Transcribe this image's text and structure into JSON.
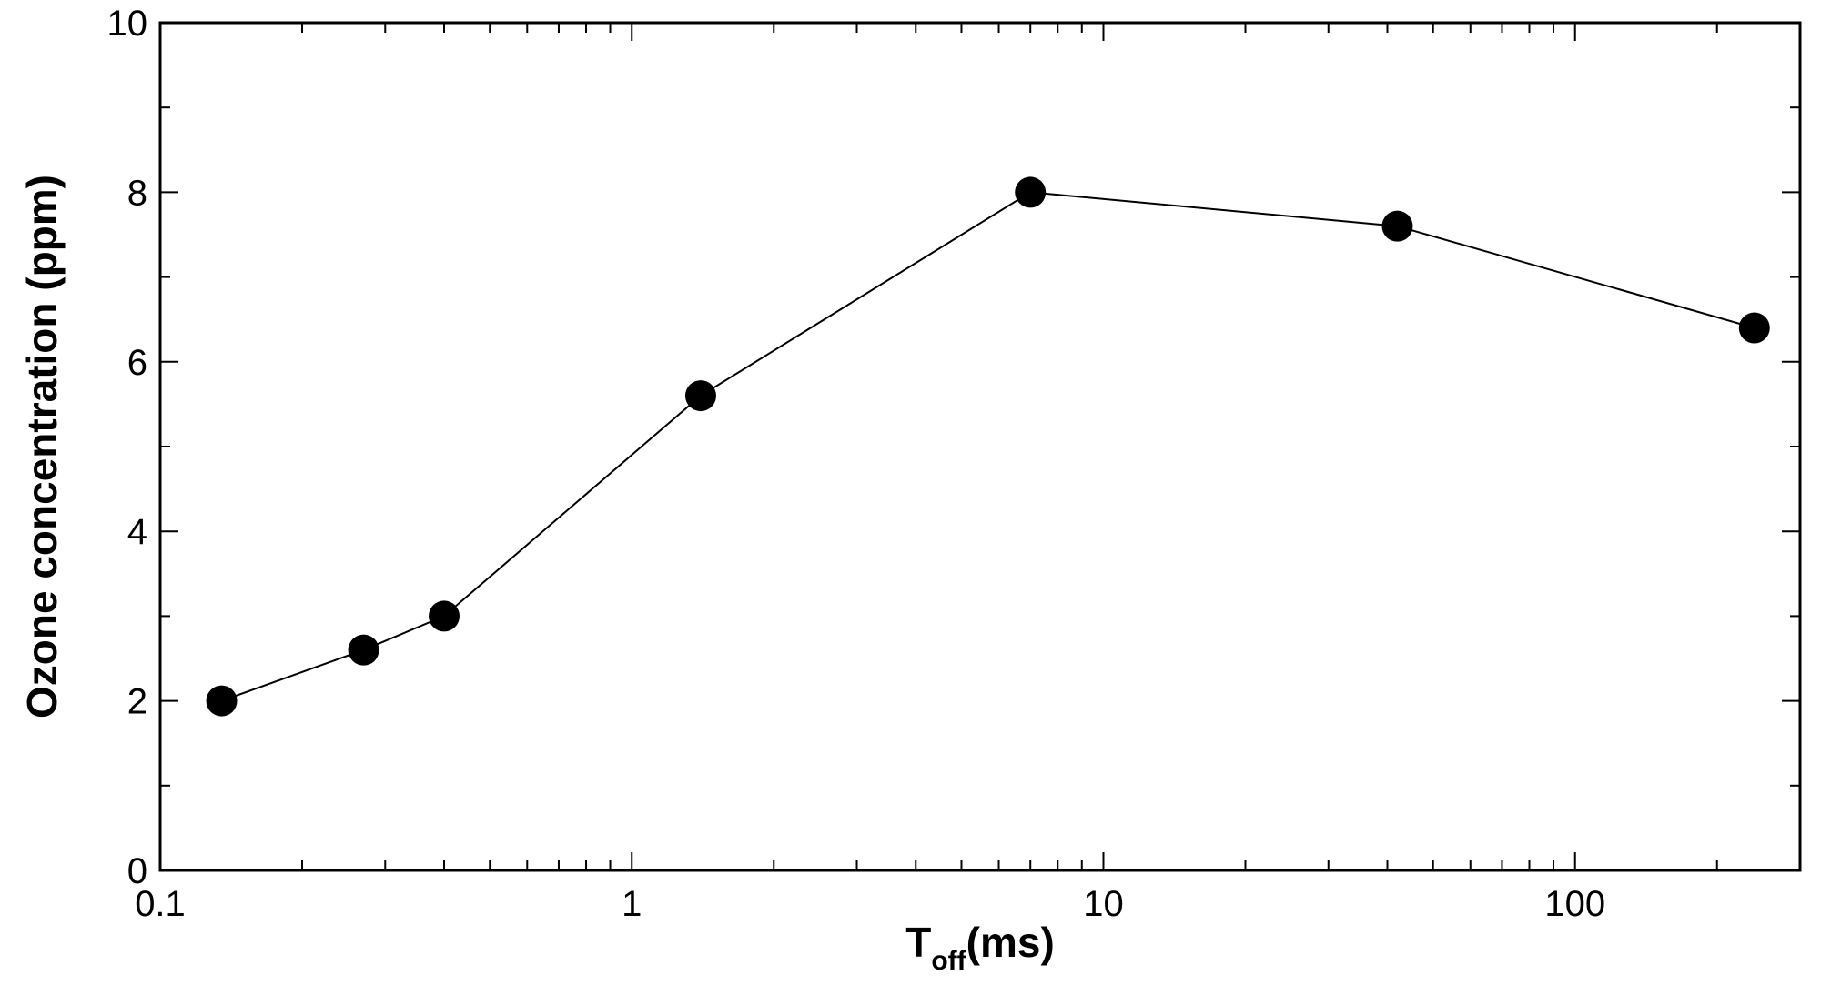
{
  "chart_data": {
    "type": "line",
    "title": "",
    "xlabel": {
      "main": "T",
      "subscript": "off",
      "suffix": "(ms)"
    },
    "ylabel": "Ozone concentration (ppm)",
    "x_scale": "log",
    "xlim": [
      0.1,
      300
    ],
    "ylim": [
      0,
      10
    ],
    "x_ticks": [
      {
        "value": 0.1,
        "label": "0.1"
      },
      {
        "value": 1,
        "label": "1"
      },
      {
        "value": 10,
        "label": "10"
      },
      {
        "value": 100,
        "label": "100"
      }
    ],
    "y_ticks": [
      {
        "value": 0,
        "label": "0"
      },
      {
        "value": 2,
        "label": "2"
      },
      {
        "value": 4,
        "label": "4"
      },
      {
        "value": 6,
        "label": "6"
      },
      {
        "value": 8,
        "label": "8"
      },
      {
        "value": 10,
        "label": "10"
      }
    ],
    "grid": false,
    "legend": "none",
    "series": [
      {
        "marker": "filled-circle",
        "color": "#000000",
        "x": [
          0.135,
          0.27,
          0.4,
          1.4,
          7,
          42,
          240
        ],
        "y": [
          2.0,
          2.6,
          3.0,
          5.6,
          8.0,
          7.6,
          6.4
        ]
      }
    ]
  }
}
